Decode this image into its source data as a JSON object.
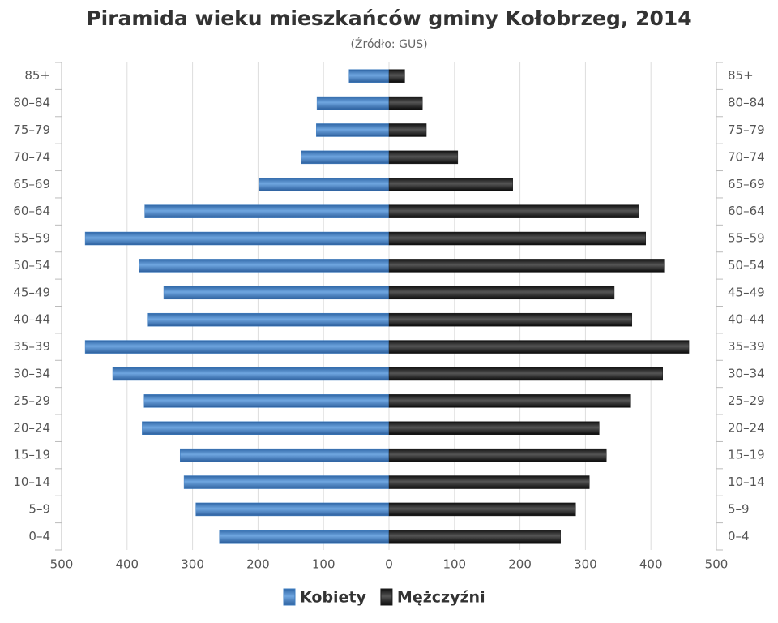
{
  "chart_data": {
    "type": "pyramid",
    "title": "Piramida wieku mieszkańców gminy Kołobrzeg, 2014",
    "subtitle": "(Źródło: GUS)",
    "categories": [
      "85+",
      "80–84",
      "75–79",
      "70–74",
      "65–69",
      "60–64",
      "55–59",
      "50–54",
      "45–49",
      "40–44",
      "35–39",
      "30–34",
      "25–29",
      "20–24",
      "15–19",
      "10–14",
      "5–9",
      "0–4"
    ],
    "series": [
      {
        "name": "Kobiety",
        "color": "#3d7cc0",
        "side": "left",
        "values": [
          61,
          110,
          111,
          134,
          199,
          373,
          464,
          382,
          344,
          368,
          464,
          422,
          374,
          377,
          319,
          313,
          295,
          259
        ]
      },
      {
        "name": "Mężczyźni",
        "color": "#1c1c1c",
        "side": "right",
        "values": [
          24,
          51,
          57,
          105,
          189,
          381,
          392,
          420,
          344,
          371,
          458,
          418,
          368,
          321,
          332,
          306,
          285,
          262
        ]
      }
    ],
    "xlim": [
      0,
      500
    ],
    "xticks": [
      0,
      100,
      200,
      300,
      400,
      500
    ],
    "grid": true,
    "legend": "bottom"
  }
}
